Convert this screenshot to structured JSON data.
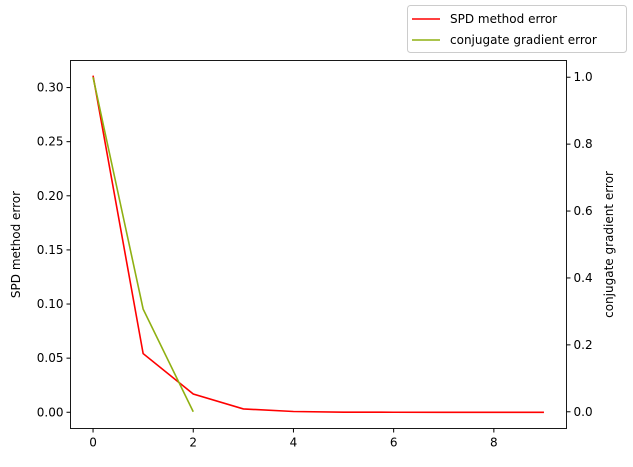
{
  "chart_data": {
    "type": "line",
    "x": [
      0,
      1,
      2,
      3,
      4,
      5,
      6,
      7,
      8,
      9
    ],
    "xlim": [
      -0.45,
      9.45
    ],
    "xticks": [
      0,
      2,
      4,
      6,
      8
    ],
    "left_axis": {
      "label": "SPD method error",
      "ylim": [
        -0.015,
        0.325
      ],
      "ticks": [
        "0.00",
        "0.05",
        "0.10",
        "0.15",
        "0.20",
        "0.25",
        "0.30"
      ]
    },
    "right_axis": {
      "label": "conjugate gradient error",
      "ylim": [
        -0.05,
        1.05
      ],
      "ticks": [
        "0.0",
        "0.2",
        "0.4",
        "0.6",
        "0.8",
        "1.0"
      ]
    },
    "series": [
      {
        "name": "SPD method error",
        "axis": "left",
        "color": "#ff0000",
        "x": [
          0,
          1,
          2,
          3,
          4,
          5,
          6,
          7,
          8,
          9
        ],
        "values": [
          0.311,
          0.0542,
          0.0169,
          0.0031,
          0.0007,
          0.0001,
          2e-05,
          0,
          0,
          0
        ]
      },
      {
        "name": "conjugate gradient error",
        "axis": "right",
        "color": "#8fb012",
        "x": [
          0,
          1,
          2
        ],
        "values": [
          1.0,
          0.307,
          0.0
        ]
      }
    ],
    "grid": false,
    "legend": "top-right, outside"
  }
}
